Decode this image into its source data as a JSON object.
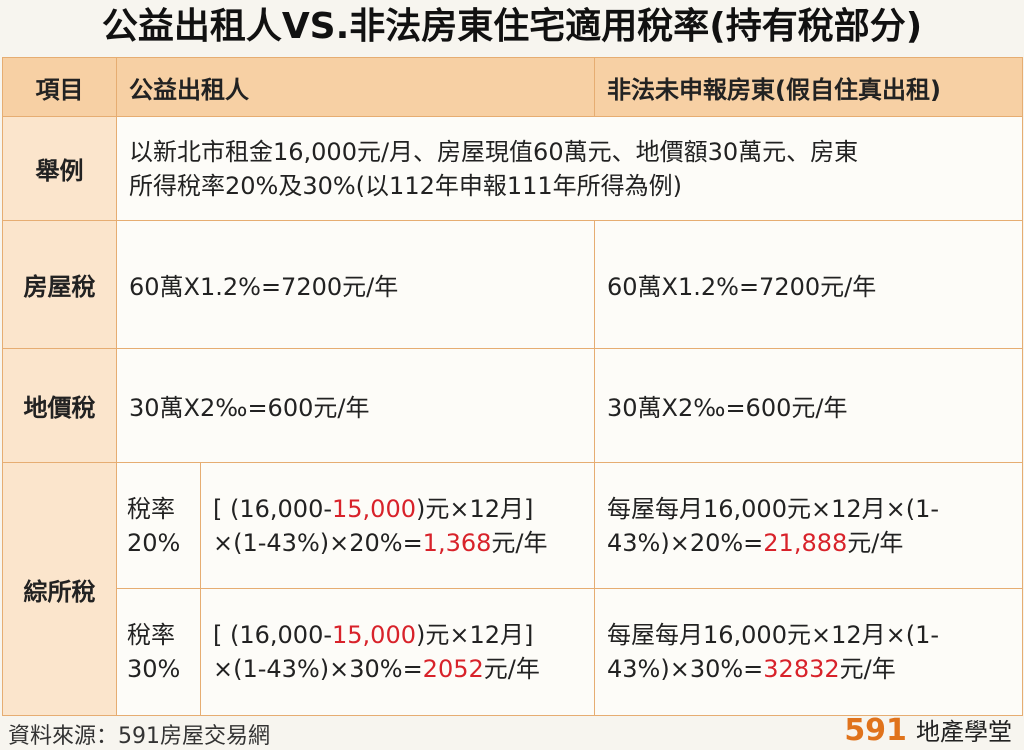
{
  "title": "公益出租人VS.非法房東住宅適用稅率(持有稅部分)",
  "header": {
    "item": "項目",
    "col_public": "公益出租人",
    "col_illegal": "非法未申報房東(假自住真出租)"
  },
  "example": {
    "label": "舉例",
    "line1": "以新北市租金16,000元/月、房屋現值60萬元、地價額30萬元、房東",
    "line2": "所得稅率20%及30%(以112年申報111年所得為例)"
  },
  "house_tax": {
    "label": "房屋稅",
    "public": "60萬X1.2%=7200元/年",
    "illegal": "60萬X1.2%=7200元/年"
  },
  "land_tax": {
    "label": "地價稅",
    "public": "30萬X2‰=600元/年",
    "illegal": "30萬X2‰=600元/年"
  },
  "income_tax": {
    "label": "綜所稅",
    "rate20": {
      "rate_line1": "稅率",
      "rate_line2": "20%",
      "public_a": "[ (16,000-",
      "public_b": "15,000",
      "public_c": ")元×12月]",
      "public_d": "×(1-43%)×20%=",
      "public_e": "1,368",
      "public_f": "元/年",
      "illegal_a": "每屋每月16,000元×12月×(1-",
      "illegal_b": "43%)×20%=",
      "illegal_c": "21,888",
      "illegal_d": "元/年"
    },
    "rate30": {
      "rate_line1": "稅率",
      "rate_line2": "30%",
      "public_a": "[ (16,000-",
      "public_b": "15,000",
      "public_c": ")元×12月]",
      "public_d": "×(1-43%)×30%=",
      "public_e": "2052",
      "public_f": "元/年",
      "illegal_a": "每屋每月16,000元×12月×(1-",
      "illegal_b": "43%)×30%=",
      "illegal_c": "32832",
      "illegal_d": "元/年"
    }
  },
  "footer": {
    "source": "資料來源：591房屋交易網",
    "logo_num": "591",
    "logo_text": "地產學堂"
  },
  "colors": {
    "header_bg": "#f7d0a4",
    "label_bg": "#fbe5cc",
    "border": "#e6ad72",
    "highlight": "#d8222a",
    "logo": "#e0731c"
  }
}
